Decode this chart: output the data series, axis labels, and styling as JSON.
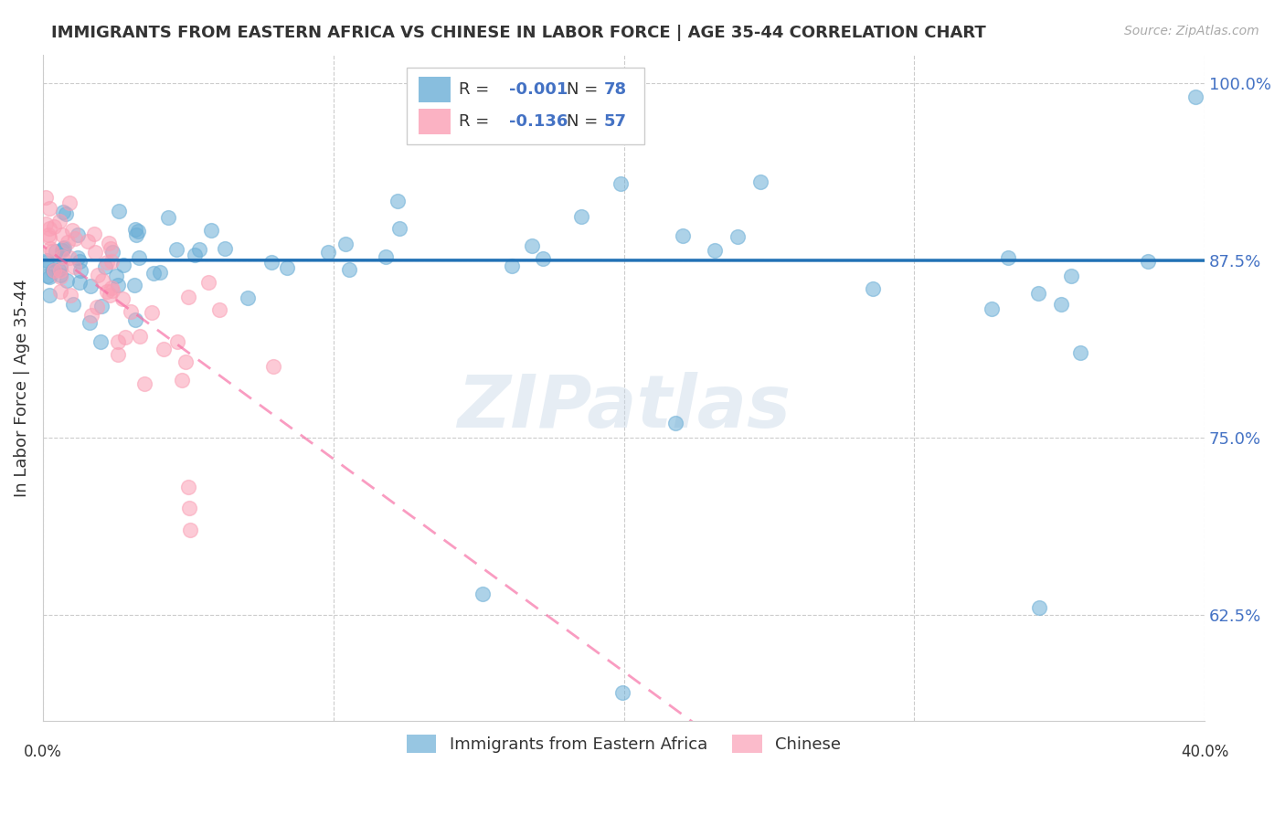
{
  "title": "IMMIGRANTS FROM EASTERN AFRICA VS CHINESE IN LABOR FORCE | AGE 35-44 CORRELATION CHART",
  "source": "Source: ZipAtlas.com",
  "ylabel": "In Labor Force | Age 35-44",
  "legend_label1": "Immigrants from Eastern Africa",
  "legend_label2": "Chinese",
  "R1": -0.001,
  "N1": 78,
  "R2": -0.136,
  "N2": 57,
  "color_blue": "#6baed6",
  "color_pink": "#fa9fb5",
  "color_blue_line": "#2171b5",
  "color_pink_line": "#f768a1",
  "xlim": [
    0.0,
    0.4
  ],
  "ylim": [
    0.55,
    1.02
  ],
  "yticks": [
    0.625,
    0.75,
    0.875,
    1.0
  ],
  "ytick_labels": [
    "62.5%",
    "75.0%",
    "87.5%",
    "100.0%"
  ]
}
